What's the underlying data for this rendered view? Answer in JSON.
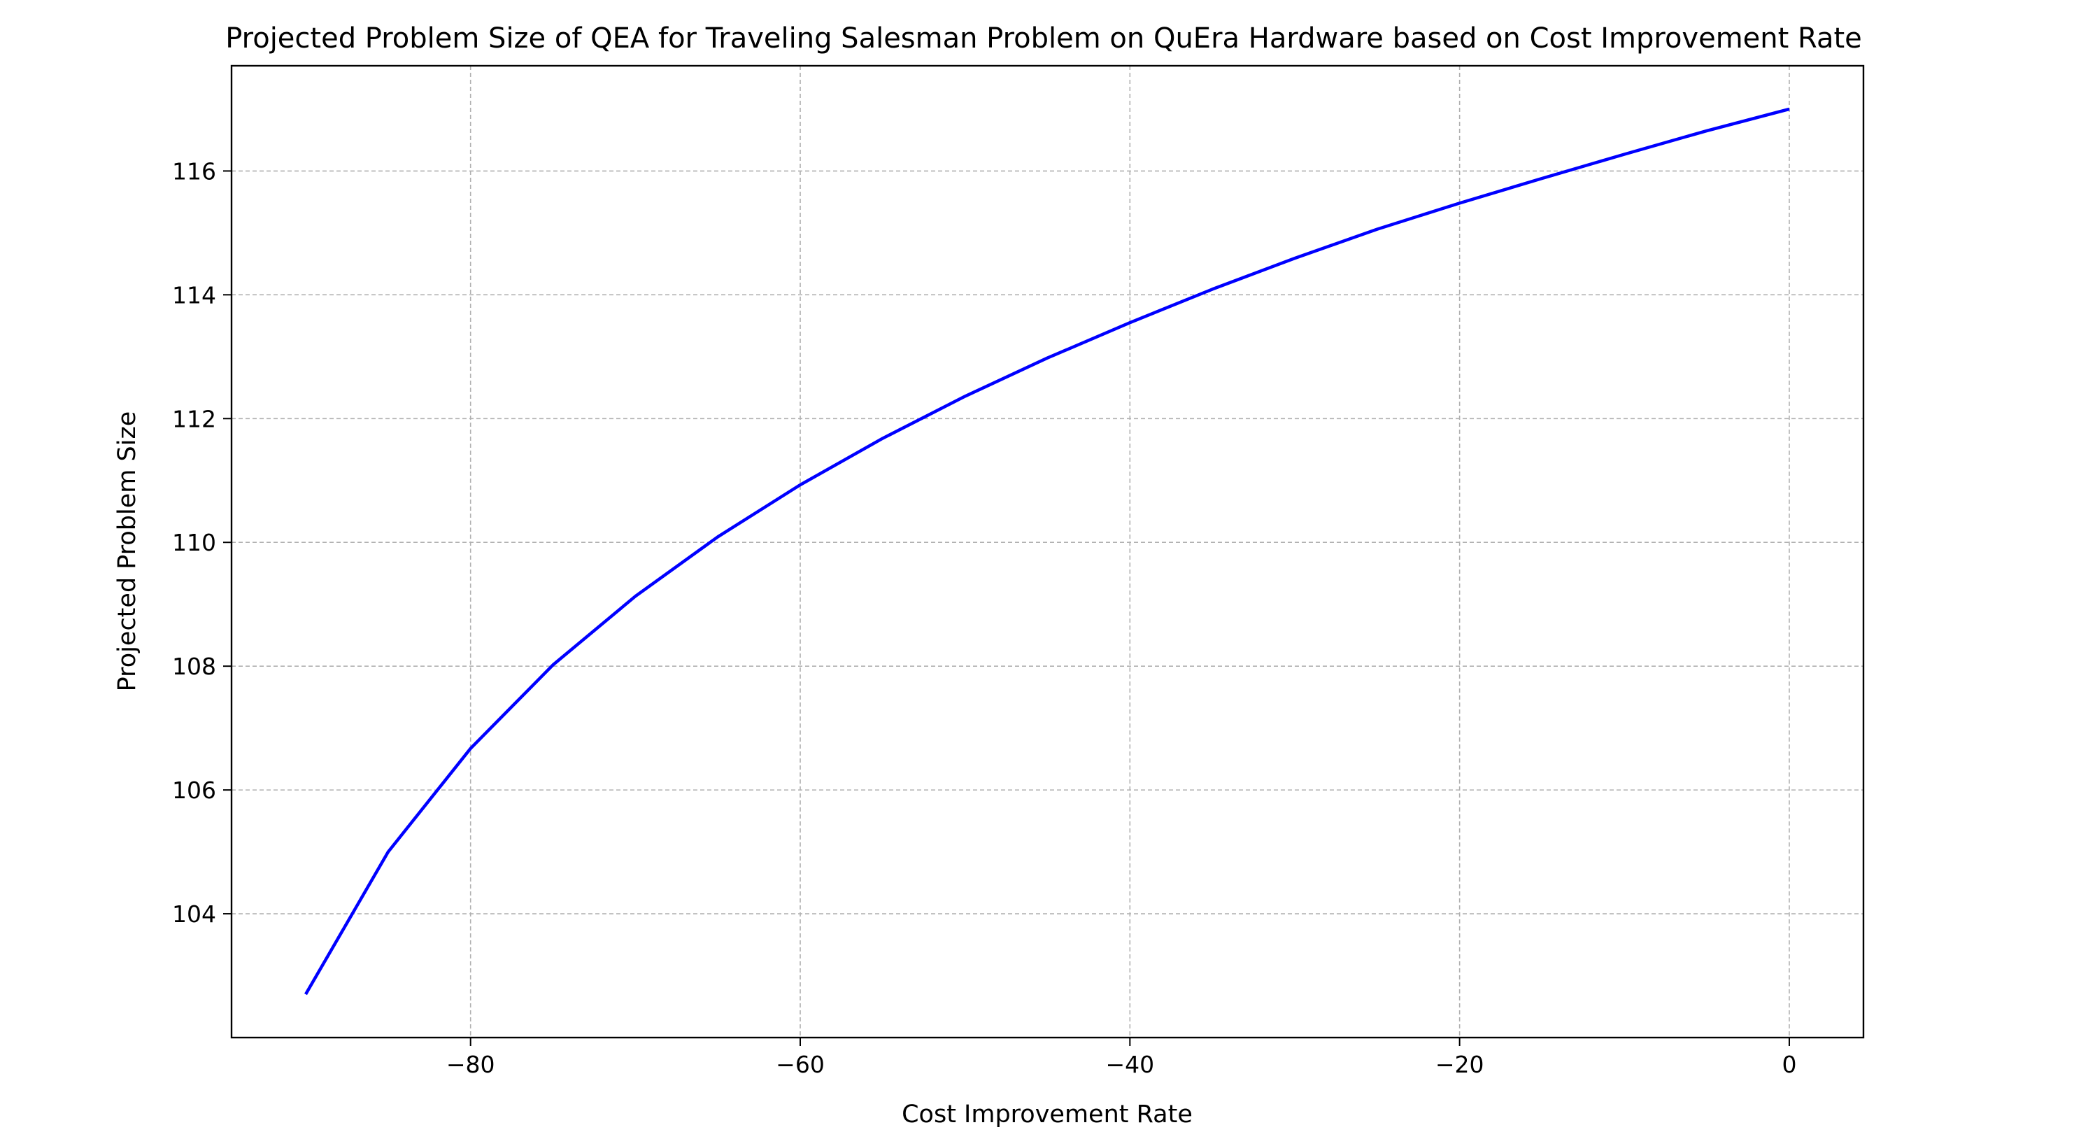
{
  "chart_data": {
    "type": "line",
    "title": "Projected Problem Size of QEA for Traveling Salesman Problem on QuEra Hardware based on Cost Improvement Rate",
    "xlabel": "Cost Improvement Rate",
    "ylabel": "Projected Problem Size",
    "xlim": [
      -94.5,
      4.5
    ],
    "ylim": [
      102.0,
      117.7
    ],
    "xticks": [
      -80,
      -60,
      -40,
      -20,
      0
    ],
    "xtick_labels": [
      "−80",
      "−60",
      "−40",
      "−20",
      "0"
    ],
    "yticks": [
      104,
      106,
      108,
      110,
      112,
      114,
      116
    ],
    "ytick_labels": [
      "104",
      "106",
      "108",
      "110",
      "112",
      "114",
      "116"
    ],
    "grid": true,
    "legend": "none",
    "series": [
      {
        "color": "#0000ff",
        "x": [
          -90,
          -85,
          -80,
          -75,
          -70,
          -65,
          -60,
          -55,
          -50,
          -45,
          -40,
          -35,
          -30,
          -25,
          -20,
          -15,
          -10,
          -5,
          0
        ],
        "y": [
          102.7,
          105.0,
          106.67,
          108.02,
          109.13,
          110.09,
          110.93,
          111.68,
          112.36,
          112.98,
          113.55,
          114.09,
          114.59,
          115.06,
          115.48,
          115.88,
          116.27,
          116.65,
          117.0
        ]
      }
    ]
  }
}
